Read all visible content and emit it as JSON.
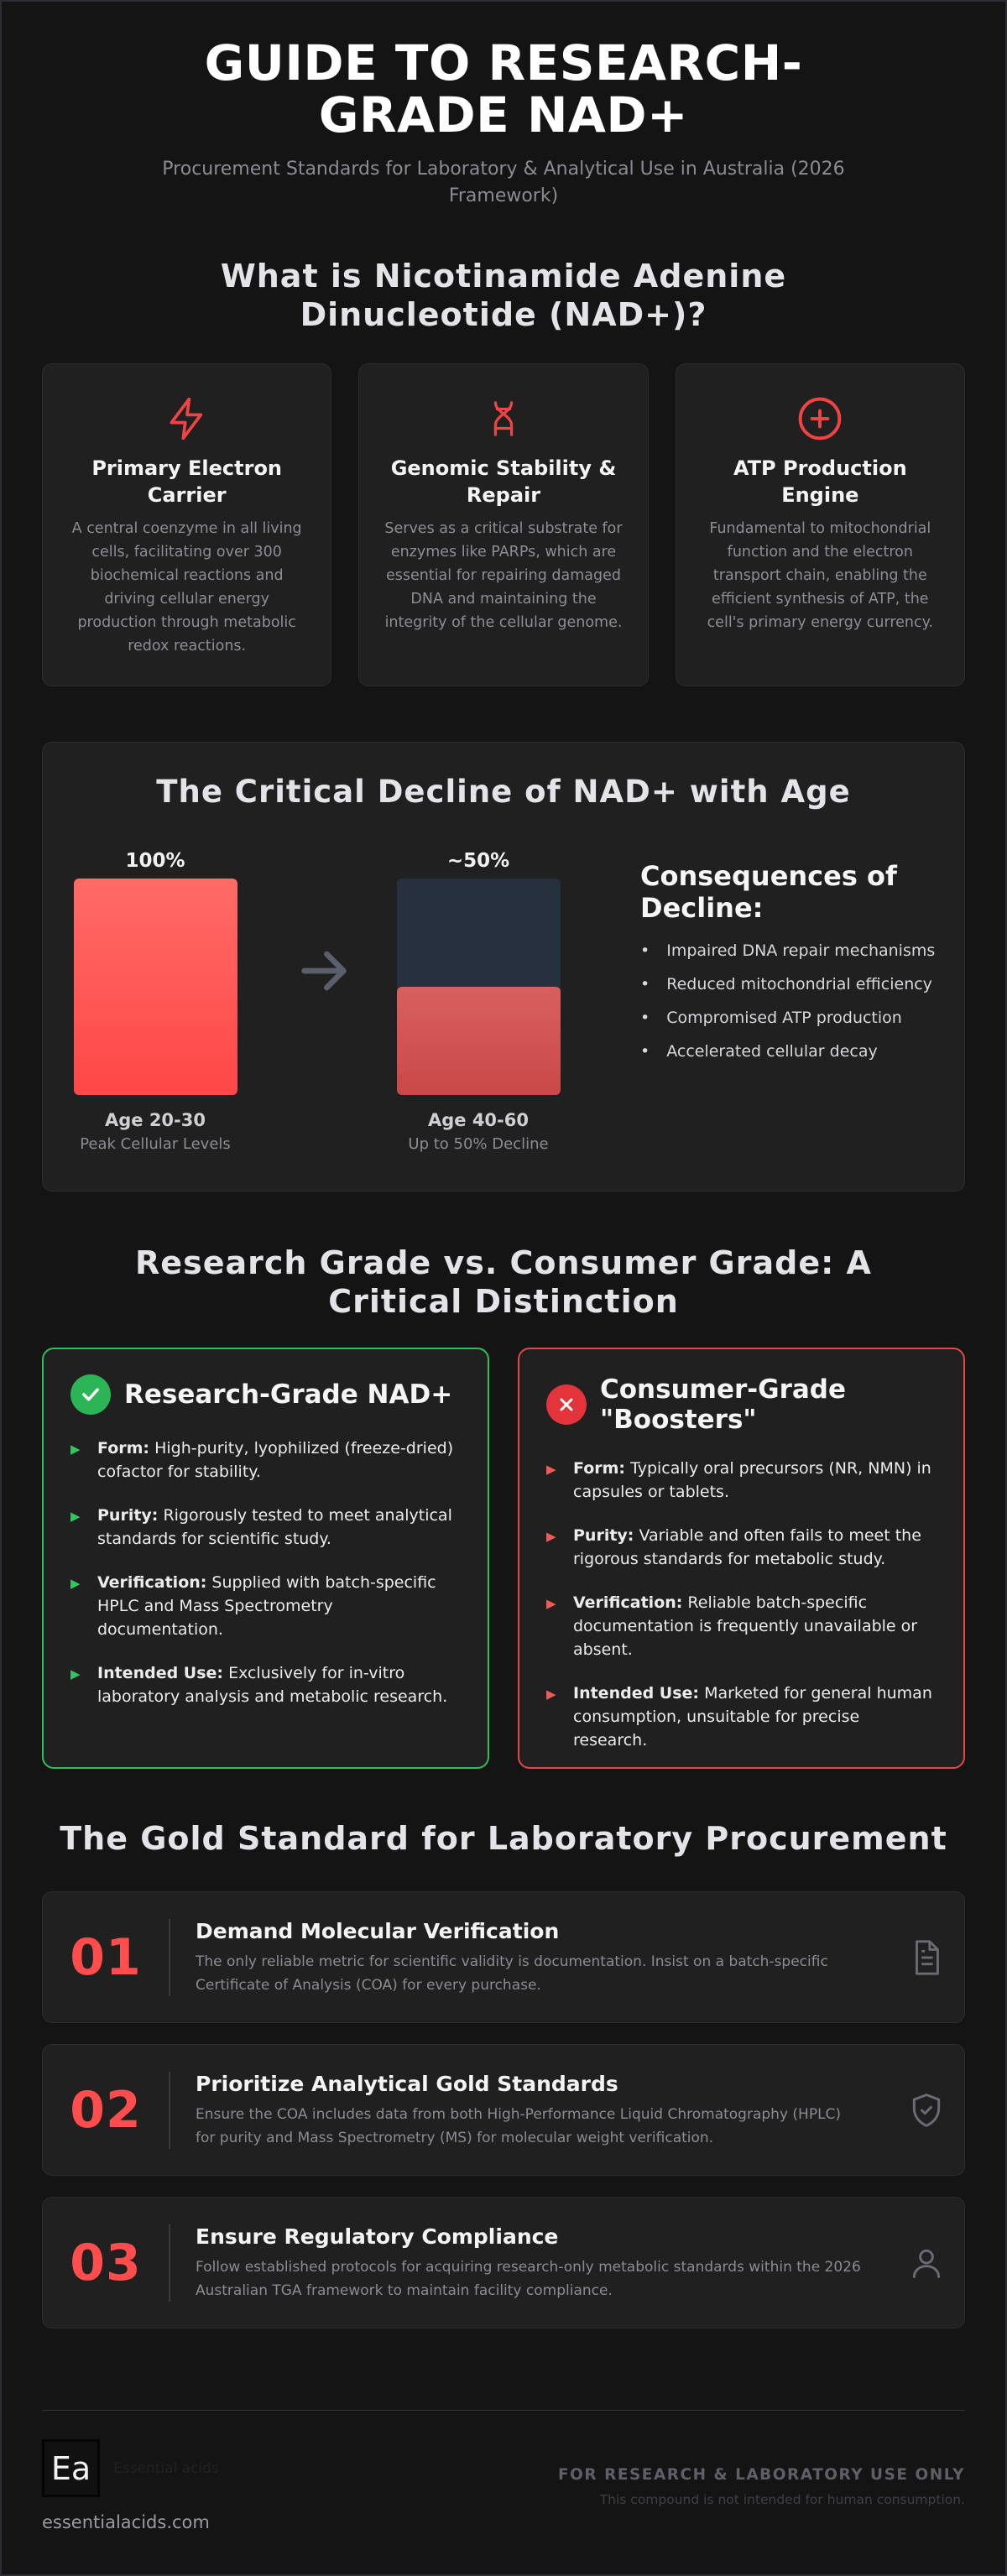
{
  "header": {
    "title_line1": "GUIDE TO RESEARCH-",
    "title_line2": "GRADE NAD+",
    "subtitle": "Procurement Standards for Laboratory & Analytical Use in Australia (2026 Framework)"
  },
  "what_is": {
    "title": "What is Nicotinamide Adenine Dinucleotide (NAD+)?",
    "cards": [
      {
        "icon": "lightning-icon",
        "title": "Primary Electron Carrier",
        "text": "A central coenzyme in all living cells, facilitating over 300 biochemical reactions and driving cellular energy production through metabolic redox reactions."
      },
      {
        "icon": "dna-icon",
        "title": "Genomic Stability & Repair",
        "text": "Serves as a critical substrate for enzymes like PARPs, which are essential for repairing damaged DNA and maintaining the integrity of the cellular genome."
      },
      {
        "icon": "plus-circle-icon",
        "title": "ATP Production Engine",
        "text": "Fundamental to mitochondrial function and the electron transport chain, enabling the efficient synthesis of ATP, the cell's primary energy currency."
      }
    ]
  },
  "decline": {
    "title": "The Critical Decline of NAD+ with Age",
    "bars": [
      {
        "pct_label": "100%",
        "level": 1.0,
        "age": "Age 20-30",
        "caption": "Peak Cellular Levels"
      },
      {
        "pct_label": "~50%",
        "level": 0.5,
        "age": "Age 40-60",
        "caption": "Up to 50% Decline"
      }
    ],
    "consequences_title": "Consequences of Decline:",
    "consequences": [
      "Impaired DNA repair mechanisms",
      "Reduced mitochondrial efficiency",
      "Compromised ATP production",
      "Accelerated cellular decay"
    ]
  },
  "compare": {
    "title": "Research Grade vs. Consumer Grade: A Critical Distinction",
    "research": {
      "title": "Research-Grade NAD+",
      "items": [
        {
          "label": "Form:",
          "text": "High-purity, lyophilized (freeze-dried) cofactor for stability."
        },
        {
          "label": "Purity:",
          "text": "Rigorously tested to meet analytical standards for scientific study."
        },
        {
          "label": "Verification:",
          "text": "Supplied with batch-specific HPLC and Mass Spectrometry documentation."
        },
        {
          "label": "Intended Use:",
          "text": "Exclusively for in-vitro laboratory analysis and metabolic research."
        }
      ]
    },
    "consumer": {
      "title": "Consumer-Grade \"Boosters\"",
      "items": [
        {
          "label": "Form:",
          "text": "Typically oral precursors (NR, NMN) in capsules or tablets."
        },
        {
          "label": "Purity:",
          "text": "Variable and often fails to meet the rigorous standards for metabolic study."
        },
        {
          "label": "Verification:",
          "text": "Reliable batch-specific documentation is frequently unavailable or absent."
        },
        {
          "label": "Intended Use:",
          "text": "Marketed for general human consumption, unsuitable for precise research."
        }
      ]
    }
  },
  "gold": {
    "title": "The Gold Standard for Laboratory Procurement",
    "items": [
      {
        "num": "01",
        "title": "Demand Molecular Verification",
        "text": "The only reliable metric for scientific validity is documentation. Insist on a batch-specific Certificate of Analysis (COA) for every purchase.",
        "icon": "document-icon"
      },
      {
        "num": "02",
        "title": "Prioritize Analytical Gold Standards",
        "text": "Ensure the COA includes data from both High-Performance Liquid Chromatography (HPLC) for purity and Mass Spectrometry (MS) for molecular weight verification.",
        "icon": "shield-check-icon"
      },
      {
        "num": "03",
        "title": "Ensure Regulatory Compliance",
        "text": "Follow established protocols for acquiring research-only metabolic standards within the 2026 Australian TGA framework to maintain facility compliance.",
        "icon": "user-icon"
      }
    ]
  },
  "footer": {
    "logo_text": "Ea",
    "brand": "Essential acids",
    "site": "essentialacids.com",
    "notice": "FOR RESEARCH & LABORATORY USE ONLY",
    "disclaimer": "This compound is not intended for human consumption."
  },
  "colors": {
    "background": "#141414",
    "card": "#202020",
    "accent_red": "#ff4c4c",
    "accent_green": "#2fbf59"
  }
}
